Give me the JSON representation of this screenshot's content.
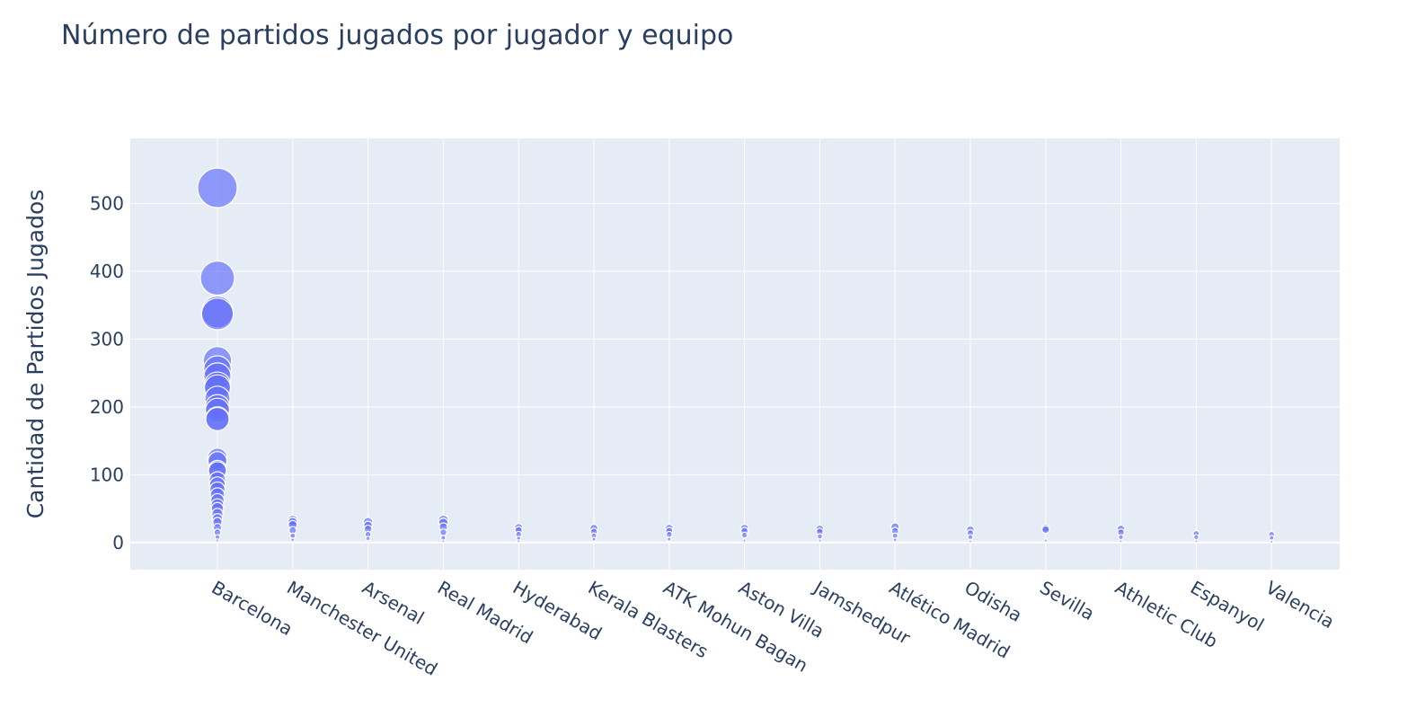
{
  "chart_data": {
    "type": "scatter",
    "title": "Número de partidos jugados por jugador y equipo",
    "xlabel": "",
    "ylabel": "Cantidad de Partidos Jugados",
    "categories": [
      "Barcelona",
      "Manchester United",
      "Arsenal",
      "Real Madrid",
      "Hyderabad",
      "Kerala Blasters",
      "ATK Mohun Bagan",
      "Aston Villa",
      "Jamshedpur",
      "Atlético Madrid",
      "Odisha",
      "Sevilla",
      "Athletic Club",
      "Espanyol",
      "Valencia"
    ],
    "ylim": [
      -40,
      596
    ],
    "yticks": [
      0,
      100,
      200,
      300,
      400,
      500
    ],
    "grid": true,
    "marker_color": "#636efa",
    "plot_bgcolor": "#e5ecf6",
    "points": [
      {
        "x": "Barcelona",
        "y": 523
      },
      {
        "x": "Barcelona",
        "y": 390
      },
      {
        "x": "Barcelona",
        "y": 340
      },
      {
        "x": "Barcelona",
        "y": 337
      },
      {
        "x": "Barcelona",
        "y": 268
      },
      {
        "x": "Barcelona",
        "y": 255
      },
      {
        "x": "Barcelona",
        "y": 245
      },
      {
        "x": "Barcelona",
        "y": 232
      },
      {
        "x": "Barcelona",
        "y": 228
      },
      {
        "x": "Barcelona",
        "y": 212
      },
      {
        "x": "Barcelona",
        "y": 200
      },
      {
        "x": "Barcelona",
        "y": 195
      },
      {
        "x": "Barcelona",
        "y": 183
      },
      {
        "x": "Barcelona",
        "y": 182
      },
      {
        "x": "Barcelona",
        "y": 125
      },
      {
        "x": "Barcelona",
        "y": 120
      },
      {
        "x": "Barcelona",
        "y": 108
      },
      {
        "x": "Barcelona",
        "y": 106
      },
      {
        "x": "Barcelona",
        "y": 92
      },
      {
        "x": "Barcelona",
        "y": 85
      },
      {
        "x": "Barcelona",
        "y": 78
      },
      {
        "x": "Barcelona",
        "y": 70
      },
      {
        "x": "Barcelona",
        "y": 62
      },
      {
        "x": "Barcelona",
        "y": 55
      },
      {
        "x": "Barcelona",
        "y": 50
      },
      {
        "x": "Barcelona",
        "y": 42
      },
      {
        "x": "Barcelona",
        "y": 35
      },
      {
        "x": "Barcelona",
        "y": 30
      },
      {
        "x": "Barcelona",
        "y": 22
      },
      {
        "x": "Barcelona",
        "y": 15
      },
      {
        "x": "Barcelona",
        "y": 8
      },
      {
        "x": "Barcelona",
        "y": 3
      },
      {
        "x": "Manchester United",
        "y": 33
      },
      {
        "x": "Manchester United",
        "y": 30
      },
      {
        "x": "Manchester United",
        "y": 26
      },
      {
        "x": "Manchester United",
        "y": 18
      },
      {
        "x": "Manchester United",
        "y": 10
      },
      {
        "x": "Manchester United",
        "y": 4
      },
      {
        "x": "Arsenal",
        "y": 30
      },
      {
        "x": "Arsenal",
        "y": 25
      },
      {
        "x": "Arsenal",
        "y": 20
      },
      {
        "x": "Arsenal",
        "y": 12
      },
      {
        "x": "Arsenal",
        "y": 6
      },
      {
        "x": "Real Madrid",
        "y": 33
      },
      {
        "x": "Real Madrid",
        "y": 29
      },
      {
        "x": "Real Madrid",
        "y": 23
      },
      {
        "x": "Real Madrid",
        "y": 15
      },
      {
        "x": "Real Madrid",
        "y": 7
      },
      {
        "x": "Real Madrid",
        "y": 2
      },
      {
        "x": "Hyderabad",
        "y": 22
      },
      {
        "x": "Hyderabad",
        "y": 18
      },
      {
        "x": "Hyderabad",
        "y": 12
      },
      {
        "x": "Hyderabad",
        "y": 6
      },
      {
        "x": "Hyderabad",
        "y": 2
      },
      {
        "x": "Kerala Blasters",
        "y": 21
      },
      {
        "x": "Kerala Blasters",
        "y": 16
      },
      {
        "x": "Kerala Blasters",
        "y": 10
      },
      {
        "x": "Kerala Blasters",
        "y": 5
      },
      {
        "x": "ATK Mohun Bagan",
        "y": 21
      },
      {
        "x": "ATK Mohun Bagan",
        "y": 17
      },
      {
        "x": "ATK Mohun Bagan",
        "y": 12
      },
      {
        "x": "ATK Mohun Bagan",
        "y": 5
      },
      {
        "x": "Aston Villa",
        "y": 21
      },
      {
        "x": "Aston Villa",
        "y": 17
      },
      {
        "x": "Aston Villa",
        "y": 11
      },
      {
        "x": "Aston Villa",
        "y": 3
      },
      {
        "x": "Jamshedpur",
        "y": 20
      },
      {
        "x": "Jamshedpur",
        "y": 16
      },
      {
        "x": "Jamshedpur",
        "y": 9
      },
      {
        "x": "Jamshedpur",
        "y": 3
      },
      {
        "x": "Atlético Madrid",
        "y": 23
      },
      {
        "x": "Atlético Madrid",
        "y": 17
      },
      {
        "x": "Atlético Madrid",
        "y": 10
      },
      {
        "x": "Atlético Madrid",
        "y": 4
      },
      {
        "x": "Odisha",
        "y": 19
      },
      {
        "x": "Odisha",
        "y": 14
      },
      {
        "x": "Odisha",
        "y": 8
      },
      {
        "x": "Odisha",
        "y": 2
      },
      {
        "x": "Sevilla",
        "y": 21
      },
      {
        "x": "Sevilla",
        "y": 19
      },
      {
        "x": "Sevilla",
        "y": 3
      },
      {
        "x": "Athletic Club",
        "y": 20
      },
      {
        "x": "Athletic Club",
        "y": 15
      },
      {
        "x": "Athletic Club",
        "y": 8
      },
      {
        "x": "Athletic Club",
        "y": 2
      },
      {
        "x": "Espanyol",
        "y": 13
      },
      {
        "x": "Espanyol",
        "y": 8
      },
      {
        "x": "Espanyol",
        "y": 2
      },
      {
        "x": "Valencia",
        "y": 12
      },
      {
        "x": "Valencia",
        "y": 7
      },
      {
        "x": "Valencia",
        "y": 1
      }
    ]
  }
}
